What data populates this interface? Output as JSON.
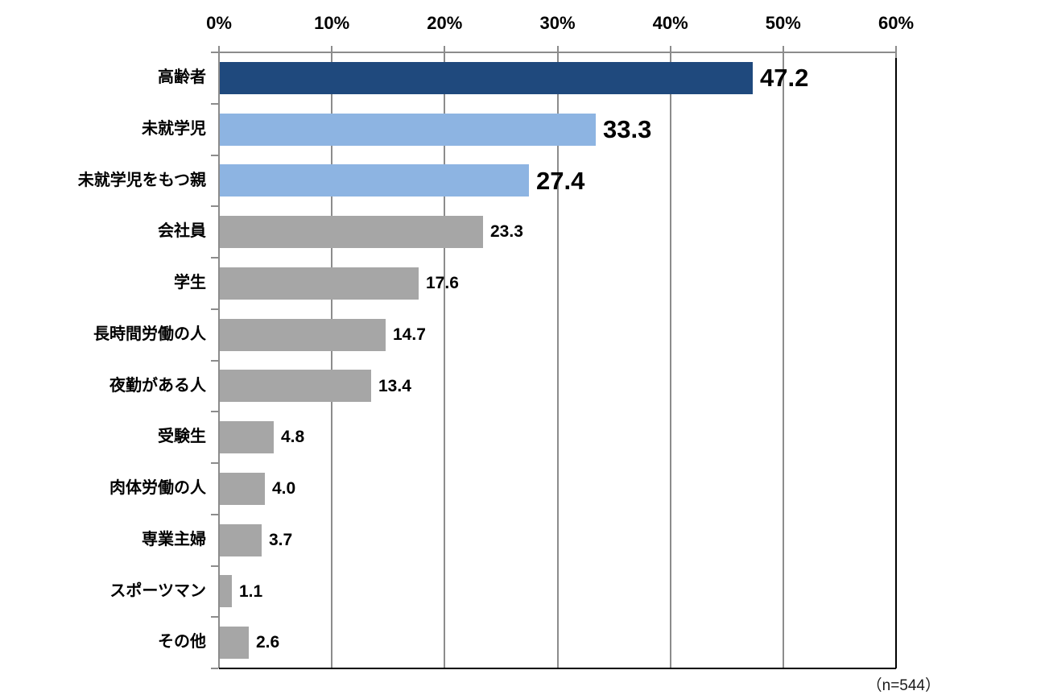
{
  "chart_data": {
    "type": "bar",
    "orientation": "horizontal",
    "title": "",
    "categories": [
      "高齢者",
      "未就学児",
      "未就学児をもつ親",
      "会社員",
      "学生",
      "長時間労働の人",
      "夜勤がある人",
      "受験生",
      "肉体労働の人",
      "専業主婦",
      "スポーツマン",
      "その他"
    ],
    "values": [
      47.2,
      33.3,
      27.4,
      23.3,
      17.6,
      14.7,
      13.4,
      4.8,
      4.0,
      3.7,
      1.1,
      2.6
    ],
    "value_labels": [
      "47.2",
      "33.3",
      "27.4",
      "23.3",
      "17.6",
      "14.7",
      "13.4",
      "4.8",
      "4.0",
      "3.7",
      "1.1",
      "2.6"
    ],
    "bar_colors": [
      "#1F497D",
      "#8DB4E2",
      "#8DB4E2",
      "#A6A6A6",
      "#A6A6A6",
      "#A6A6A6",
      "#A6A6A6",
      "#A6A6A6",
      "#A6A6A6",
      "#A6A6A6",
      "#A6A6A6",
      "#A6A6A6"
    ],
    "emphasized": [
      true,
      true,
      true,
      false,
      false,
      false,
      false,
      false,
      false,
      false,
      false,
      false
    ],
    "x_axis": {
      "position": "top",
      "min": 0,
      "max": 60,
      "tick_step": 10,
      "ticks": [
        "0%",
        "10%",
        "20%",
        "30%",
        "40%",
        "50%",
        "60%"
      ]
    },
    "grid": true,
    "legend": "none",
    "note": "（n=544）",
    "colors": {
      "navy": "#1F497D",
      "light_blue": "#8DB4E2",
      "bar_gray": "#A6A6A6",
      "gridline_gray": "#8C8C8C",
      "plot_border_black": "#000000",
      "text": "#000000",
      "background": "#FFFFFF"
    }
  }
}
